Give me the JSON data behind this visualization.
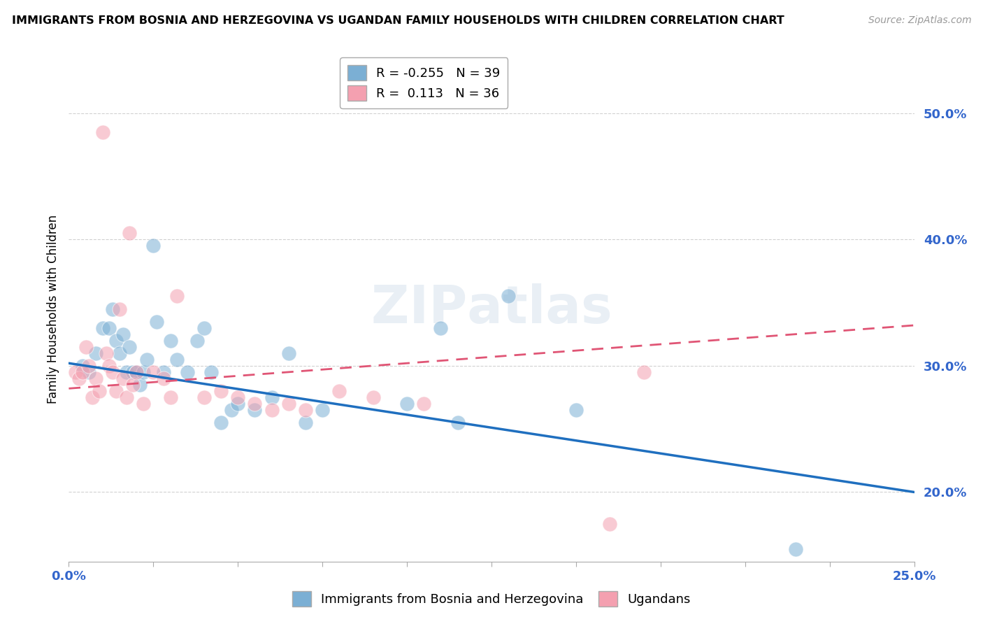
{
  "title": "IMMIGRANTS FROM BOSNIA AND HERZEGOVINA VS UGANDAN FAMILY HOUSEHOLDS WITH CHILDREN CORRELATION CHART",
  "source": "Source: ZipAtlas.com",
  "ylabel": "Family Households with Children",
  "y_ticks": [
    0.2,
    0.3,
    0.4,
    0.5
  ],
  "y_tick_labels": [
    "20.0%",
    "30.0%",
    "40.0%",
    "50.0%"
  ],
  "xlim": [
    0.0,
    0.25
  ],
  "ylim": [
    0.145,
    0.545
  ],
  "blue_R": -0.255,
  "blue_N": 39,
  "pink_R": 0.113,
  "pink_N": 36,
  "blue_color": "#7BAFD4",
  "pink_color": "#F4A0B0",
  "blue_line_color": "#1F6FBF",
  "pink_line_color": "#E05575",
  "blue_line_x0": 0.0,
  "blue_line_y0": 0.302,
  "blue_line_x1": 0.25,
  "blue_line_y1": 0.2,
  "pink_line_x0": 0.0,
  "pink_line_y0": 0.282,
  "pink_line_x1": 0.25,
  "pink_line_y1": 0.332,
  "blue_points": [
    [
      0.004,
      0.3
    ],
    [
      0.006,
      0.295
    ],
    [
      0.008,
      0.31
    ],
    [
      0.01,
      0.33
    ],
    [
      0.012,
      0.33
    ],
    [
      0.013,
      0.345
    ],
    [
      0.014,
      0.32
    ],
    [
      0.015,
      0.31
    ],
    [
      0.016,
      0.325
    ],
    [
      0.017,
      0.295
    ],
    [
      0.018,
      0.315
    ],
    [
      0.019,
      0.295
    ],
    [
      0.02,
      0.295
    ],
    [
      0.021,
      0.285
    ],
    [
      0.022,
      0.295
    ],
    [
      0.023,
      0.305
    ],
    [
      0.025,
      0.395
    ],
    [
      0.026,
      0.335
    ],
    [
      0.028,
      0.295
    ],
    [
      0.03,
      0.32
    ],
    [
      0.032,
      0.305
    ],
    [
      0.035,
      0.295
    ],
    [
      0.038,
      0.32
    ],
    [
      0.04,
      0.33
    ],
    [
      0.042,
      0.295
    ],
    [
      0.045,
      0.255
    ],
    [
      0.048,
      0.265
    ],
    [
      0.05,
      0.27
    ],
    [
      0.055,
      0.265
    ],
    [
      0.06,
      0.275
    ],
    [
      0.065,
      0.31
    ],
    [
      0.07,
      0.255
    ],
    [
      0.075,
      0.265
    ],
    [
      0.1,
      0.27
    ],
    [
      0.11,
      0.33
    ],
    [
      0.115,
      0.255
    ],
    [
      0.13,
      0.355
    ],
    [
      0.15,
      0.265
    ],
    [
      0.215,
      0.155
    ]
  ],
  "pink_points": [
    [
      0.002,
      0.295
    ],
    [
      0.003,
      0.29
    ],
    [
      0.004,
      0.295
    ],
    [
      0.005,
      0.315
    ],
    [
      0.006,
      0.3
    ],
    [
      0.007,
      0.275
    ],
    [
      0.008,
      0.29
    ],
    [
      0.009,
      0.28
    ],
    [
      0.01,
      0.485
    ],
    [
      0.011,
      0.31
    ],
    [
      0.012,
      0.3
    ],
    [
      0.013,
      0.295
    ],
    [
      0.014,
      0.28
    ],
    [
      0.015,
      0.345
    ],
    [
      0.016,
      0.29
    ],
    [
      0.017,
      0.275
    ],
    [
      0.018,
      0.405
    ],
    [
      0.019,
      0.285
    ],
    [
      0.02,
      0.295
    ],
    [
      0.022,
      0.27
    ],
    [
      0.025,
      0.295
    ],
    [
      0.028,
      0.29
    ],
    [
      0.03,
      0.275
    ],
    [
      0.032,
      0.355
    ],
    [
      0.04,
      0.275
    ],
    [
      0.045,
      0.28
    ],
    [
      0.05,
      0.275
    ],
    [
      0.055,
      0.27
    ],
    [
      0.06,
      0.265
    ],
    [
      0.065,
      0.27
    ],
    [
      0.07,
      0.265
    ],
    [
      0.08,
      0.28
    ],
    [
      0.09,
      0.275
    ],
    [
      0.105,
      0.27
    ],
    [
      0.16,
      0.175
    ],
    [
      0.17,
      0.295
    ]
  ]
}
